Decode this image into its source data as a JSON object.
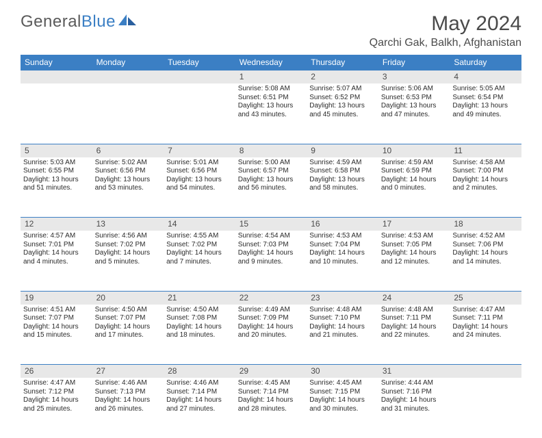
{
  "logo": {
    "text1": "General",
    "text2": "Blue"
  },
  "title": "May 2024",
  "location": "Qarchi Gak, Balkh, Afghanistan",
  "colors": {
    "header_bg": "#3b7fc4",
    "daynum_bg": "#e8e8e8",
    "row_border": "#3b7fc4",
    "text": "#2a2a2a"
  },
  "day_headers": [
    "Sunday",
    "Monday",
    "Tuesday",
    "Wednesday",
    "Thursday",
    "Friday",
    "Saturday"
  ],
  "weeks": [
    {
      "nums": [
        "",
        "",
        "",
        "1",
        "2",
        "3",
        "4"
      ],
      "cells": [
        null,
        null,
        null,
        {
          "sunrise": "Sunrise: 5:08 AM",
          "sunset": "Sunset: 6:51 PM",
          "day1": "Daylight: 13 hours",
          "day2": "and 43 minutes."
        },
        {
          "sunrise": "Sunrise: 5:07 AM",
          "sunset": "Sunset: 6:52 PM",
          "day1": "Daylight: 13 hours",
          "day2": "and 45 minutes."
        },
        {
          "sunrise": "Sunrise: 5:06 AM",
          "sunset": "Sunset: 6:53 PM",
          "day1": "Daylight: 13 hours",
          "day2": "and 47 minutes."
        },
        {
          "sunrise": "Sunrise: 5:05 AM",
          "sunset": "Sunset: 6:54 PM",
          "day1": "Daylight: 13 hours",
          "day2": "and 49 minutes."
        }
      ]
    },
    {
      "nums": [
        "5",
        "6",
        "7",
        "8",
        "9",
        "10",
        "11"
      ],
      "cells": [
        {
          "sunrise": "Sunrise: 5:03 AM",
          "sunset": "Sunset: 6:55 PM",
          "day1": "Daylight: 13 hours",
          "day2": "and 51 minutes."
        },
        {
          "sunrise": "Sunrise: 5:02 AM",
          "sunset": "Sunset: 6:56 PM",
          "day1": "Daylight: 13 hours",
          "day2": "and 53 minutes."
        },
        {
          "sunrise": "Sunrise: 5:01 AM",
          "sunset": "Sunset: 6:56 PM",
          "day1": "Daylight: 13 hours",
          "day2": "and 54 minutes."
        },
        {
          "sunrise": "Sunrise: 5:00 AM",
          "sunset": "Sunset: 6:57 PM",
          "day1": "Daylight: 13 hours",
          "day2": "and 56 minutes."
        },
        {
          "sunrise": "Sunrise: 4:59 AM",
          "sunset": "Sunset: 6:58 PM",
          "day1": "Daylight: 13 hours",
          "day2": "and 58 minutes."
        },
        {
          "sunrise": "Sunrise: 4:59 AM",
          "sunset": "Sunset: 6:59 PM",
          "day1": "Daylight: 14 hours",
          "day2": "and 0 minutes."
        },
        {
          "sunrise": "Sunrise: 4:58 AM",
          "sunset": "Sunset: 7:00 PM",
          "day1": "Daylight: 14 hours",
          "day2": "and 2 minutes."
        }
      ]
    },
    {
      "nums": [
        "12",
        "13",
        "14",
        "15",
        "16",
        "17",
        "18"
      ],
      "cells": [
        {
          "sunrise": "Sunrise: 4:57 AM",
          "sunset": "Sunset: 7:01 PM",
          "day1": "Daylight: 14 hours",
          "day2": "and 4 minutes."
        },
        {
          "sunrise": "Sunrise: 4:56 AM",
          "sunset": "Sunset: 7:02 PM",
          "day1": "Daylight: 14 hours",
          "day2": "and 5 minutes."
        },
        {
          "sunrise": "Sunrise: 4:55 AM",
          "sunset": "Sunset: 7:02 PM",
          "day1": "Daylight: 14 hours",
          "day2": "and 7 minutes."
        },
        {
          "sunrise": "Sunrise: 4:54 AM",
          "sunset": "Sunset: 7:03 PM",
          "day1": "Daylight: 14 hours",
          "day2": "and 9 minutes."
        },
        {
          "sunrise": "Sunrise: 4:53 AM",
          "sunset": "Sunset: 7:04 PM",
          "day1": "Daylight: 14 hours",
          "day2": "and 10 minutes."
        },
        {
          "sunrise": "Sunrise: 4:53 AM",
          "sunset": "Sunset: 7:05 PM",
          "day1": "Daylight: 14 hours",
          "day2": "and 12 minutes."
        },
        {
          "sunrise": "Sunrise: 4:52 AM",
          "sunset": "Sunset: 7:06 PM",
          "day1": "Daylight: 14 hours",
          "day2": "and 14 minutes."
        }
      ]
    },
    {
      "nums": [
        "19",
        "20",
        "21",
        "22",
        "23",
        "24",
        "25"
      ],
      "cells": [
        {
          "sunrise": "Sunrise: 4:51 AM",
          "sunset": "Sunset: 7:07 PM",
          "day1": "Daylight: 14 hours",
          "day2": "and 15 minutes."
        },
        {
          "sunrise": "Sunrise: 4:50 AM",
          "sunset": "Sunset: 7:07 PM",
          "day1": "Daylight: 14 hours",
          "day2": "and 17 minutes."
        },
        {
          "sunrise": "Sunrise: 4:50 AM",
          "sunset": "Sunset: 7:08 PM",
          "day1": "Daylight: 14 hours",
          "day2": "and 18 minutes."
        },
        {
          "sunrise": "Sunrise: 4:49 AM",
          "sunset": "Sunset: 7:09 PM",
          "day1": "Daylight: 14 hours",
          "day2": "and 20 minutes."
        },
        {
          "sunrise": "Sunrise: 4:48 AM",
          "sunset": "Sunset: 7:10 PM",
          "day1": "Daylight: 14 hours",
          "day2": "and 21 minutes."
        },
        {
          "sunrise": "Sunrise: 4:48 AM",
          "sunset": "Sunset: 7:11 PM",
          "day1": "Daylight: 14 hours",
          "day2": "and 22 minutes."
        },
        {
          "sunrise": "Sunrise: 4:47 AM",
          "sunset": "Sunset: 7:11 PM",
          "day1": "Daylight: 14 hours",
          "day2": "and 24 minutes."
        }
      ]
    },
    {
      "nums": [
        "26",
        "27",
        "28",
        "29",
        "30",
        "31",
        ""
      ],
      "cells": [
        {
          "sunrise": "Sunrise: 4:47 AM",
          "sunset": "Sunset: 7:12 PM",
          "day1": "Daylight: 14 hours",
          "day2": "and 25 minutes."
        },
        {
          "sunrise": "Sunrise: 4:46 AM",
          "sunset": "Sunset: 7:13 PM",
          "day1": "Daylight: 14 hours",
          "day2": "and 26 minutes."
        },
        {
          "sunrise": "Sunrise: 4:46 AM",
          "sunset": "Sunset: 7:14 PM",
          "day1": "Daylight: 14 hours",
          "day2": "and 27 minutes."
        },
        {
          "sunrise": "Sunrise: 4:45 AM",
          "sunset": "Sunset: 7:14 PM",
          "day1": "Daylight: 14 hours",
          "day2": "and 28 minutes."
        },
        {
          "sunrise": "Sunrise: 4:45 AM",
          "sunset": "Sunset: 7:15 PM",
          "day1": "Daylight: 14 hours",
          "day2": "and 30 minutes."
        },
        {
          "sunrise": "Sunrise: 4:44 AM",
          "sunset": "Sunset: 7:16 PM",
          "day1": "Daylight: 14 hours",
          "day2": "and 31 minutes."
        },
        null
      ]
    }
  ]
}
